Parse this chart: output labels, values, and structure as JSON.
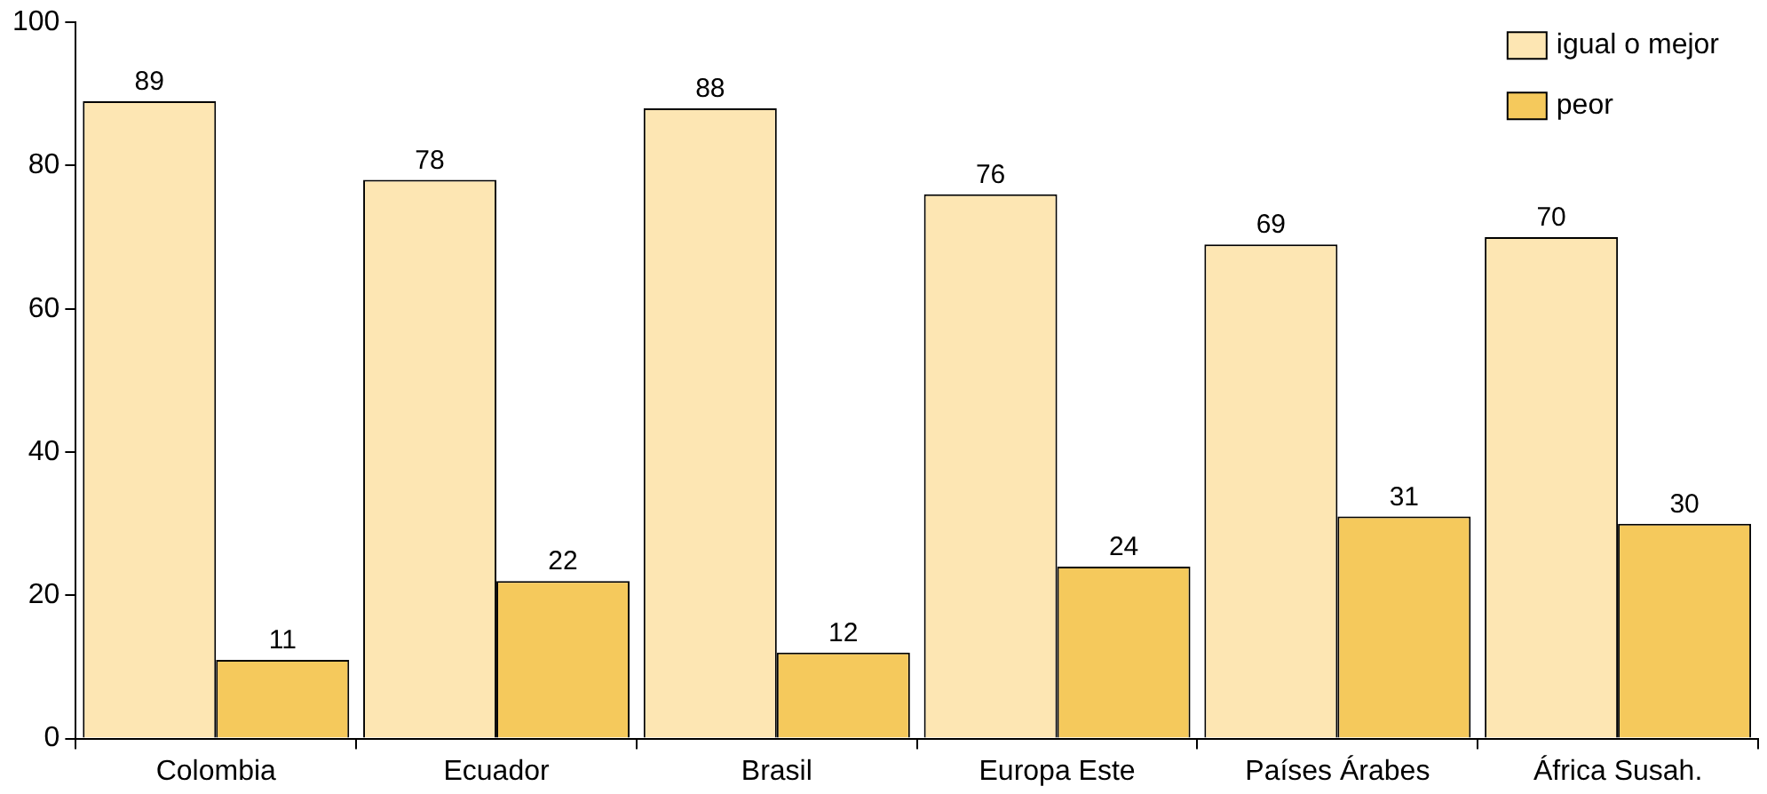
{
  "chart_data": {
    "type": "bar",
    "categories": [
      "Colombia",
      "Ecuador",
      "Brasil",
      "Europa Este",
      "Países Árabes",
      "África Susah."
    ],
    "series": [
      {
        "name": "igual o mejor",
        "color": "#fde6b3",
        "values": [
          89,
          78,
          88,
          76,
          69,
          70
        ]
      },
      {
        "name": "peor",
        "color": "#f5c95c",
        "values": [
          11,
          22,
          12,
          24,
          31,
          30
        ]
      }
    ],
    "ylim": [
      0,
      100
    ],
    "yticks": [
      0,
      20,
      40,
      60,
      80,
      100
    ],
    "grid": false,
    "legend": "top right",
    "data_labels": true
  }
}
